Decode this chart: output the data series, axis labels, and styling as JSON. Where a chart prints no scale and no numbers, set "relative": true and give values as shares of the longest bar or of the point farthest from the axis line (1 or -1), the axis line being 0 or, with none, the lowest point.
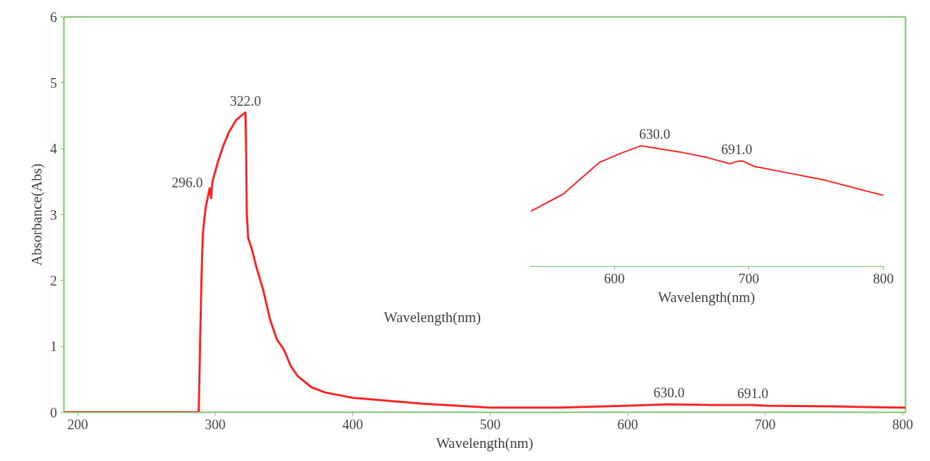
{
  "chart_data": [
    {
      "type": "line",
      "xlabel": "Wavelength(nm)",
      "ylabel": "Absorbance(Abs)",
      "xlim": [
        190,
        802
      ],
      "ylim": [
        0,
        6
      ],
      "xticks": [
        200,
        300,
        400,
        500,
        600,
        700,
        800
      ],
      "yticks": [
        0,
        1,
        2,
        3,
        4,
        5,
        6
      ],
      "grid": false,
      "marker": "none",
      "line_style": "solid",
      "series": [
        {
          "color": "#ff2020",
          "x": [
            190,
            288,
            289,
            290,
            291,
            293,
            295,
            296,
            297,
            298,
            302,
            306,
            310,
            315,
            320,
            322,
            322.5,
            323,
            324,
            327,
            330,
            335,
            340,
            345,
            350,
            355,
            360,
            370,
            380,
            400,
            450,
            500,
            550,
            600,
            630,
            660,
            691,
            700,
            750,
            800,
            802
          ],
          "values": [
            0,
            0,
            1.0,
            2.0,
            2.7,
            3.1,
            3.3,
            3.4,
            3.25,
            3.5,
            3.8,
            4.05,
            4.25,
            4.43,
            4.52,
            4.55,
            4.0,
            3.0,
            2.65,
            2.45,
            2.2,
            1.85,
            1.4,
            1.1,
            0.95,
            0.7,
            0.55,
            0.38,
            0.3,
            0.22,
            0.13,
            0.07,
            0.07,
            0.1,
            0.12,
            0.11,
            0.11,
            0.1,
            0.09,
            0.07,
            0.07
          ]
        }
      ],
      "annotations": [
        {
          "text": "296.0",
          "x": 296,
          "y": 3.4
        },
        {
          "text": "322.0",
          "x": 322,
          "y": 4.55
        },
        {
          "text": "630.0",
          "x": 630,
          "y": 0.12
        },
        {
          "text": "691.0",
          "x": 691,
          "y": 0.11
        },
        "Wavelength(nm)"
      ]
    },
    {
      "type": "line",
      "relative": true,
      "xlabel": "Wavelength(nm)",
      "xlim": [
        537,
        800
      ],
      "xticks": [
        600,
        700,
        800
      ],
      "tick_labels": "x",
      "grid": false,
      "marker": "none",
      "line_style": "solid",
      "series": [
        {
          "color": "#ff2020",
          "x": [
            538,
            562,
            589,
            606,
            620,
            651,
            669,
            686,
            691,
            695,
            704,
            731,
            757,
            784,
            800
          ],
          "values": [
            0.457,
            0.6,
            0.863,
            0.943,
            1.0,
            0.943,
            0.903,
            0.851,
            0.87,
            0.874,
            0.829,
            0.771,
            0.714,
            0.634,
            0.589
          ]
        }
      ],
      "annotations": [
        {
          "text": "630.0",
          "x": 630,
          "y": 1.0
        },
        {
          "text": "691.0",
          "x": 691,
          "y": 0.874
        }
      ]
    }
  ]
}
